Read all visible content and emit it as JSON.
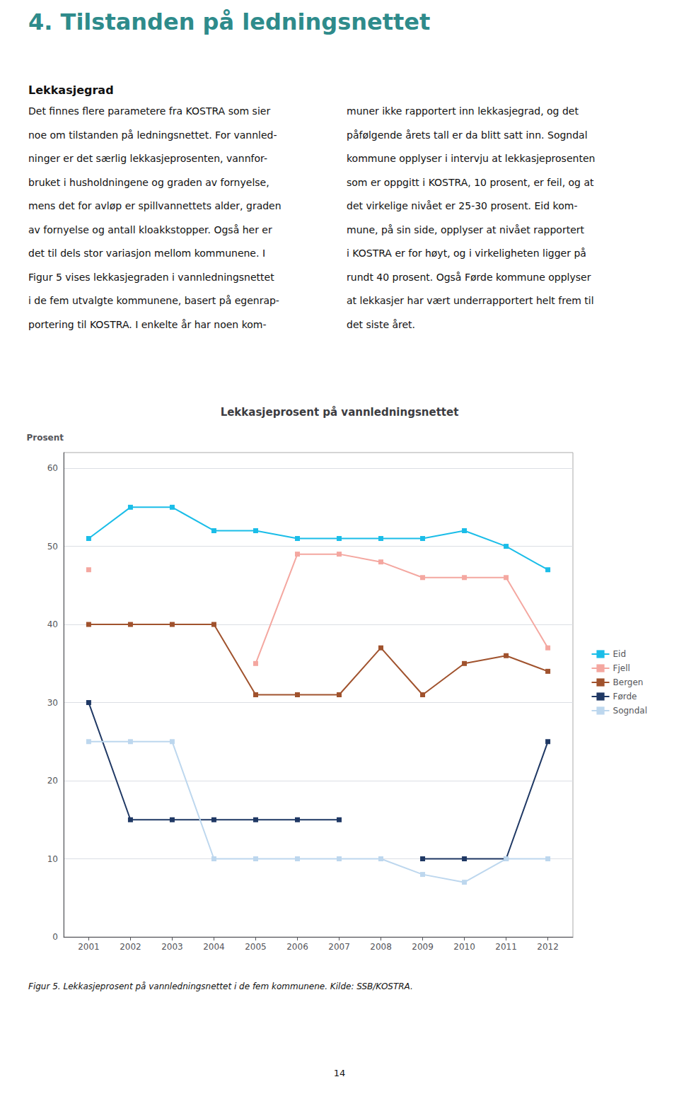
{
  "heading": "4. Tilstanden på ledningsnettet",
  "heading_color": "#2E8B8B",
  "subheading": "Lekkasjegrad",
  "body_left_lines": [
    "Det finnes flere parametere fra KOSTRA som sier",
    "noe om tilstanden på ledningsnettet. For vannled-",
    "ninger er det særlig lekkasjeprosenten, vannfor-",
    "bruket i husholdningene og graden av fornyelse,",
    "mens det for avløp er spillvannettets alder, graden",
    "av fornyelse og antall kloakkstopper. Også her er",
    "det til dels stor variasjon mellom kommunene. I",
    "Figur 5 vises lekkasjegraden i vannledningsnettet",
    "i de fem utvalgte kommunene, basert på egenrap-",
    "portering til KOSTRA. I enkelte år har noen kom-"
  ],
  "body_right_lines": [
    "muner ikke rapportert inn lekkasjegrad, og det",
    "påfølgende årets tall er da blitt satt inn. Sogndal",
    "kommune opplyser i intervju at lekkasjeprosenten",
    "som er oppgitt i KOSTRA, 10 prosent, er feil, og at",
    "det virkelige nivået er 25-30 prosent. Eid kom-",
    "mune, på sin side, opplyser at nivået rapportert",
    "i KOSTRA er for høyt, og i virkeligheten ligger på",
    "rundt 40 prosent. Også Førde kommune opplyser",
    "at lekkasjer har vært underrapportert helt frem til",
    "det siste året."
  ],
  "caption": "Figur 5. Lekkasjeprosent på vannledningsnettet i de fem kommunene. Kilde: SSB/KOSTRA.",
  "page_number": "14",
  "chart_data": {
    "type": "line",
    "title": "Lekkasjeprosent på vannledningsnettet",
    "ylabel": "Prosent",
    "x": [
      2001,
      2002,
      2003,
      2004,
      2005,
      2006,
      2007,
      2008,
      2009,
      2010,
      2011,
      2012
    ],
    "series": [
      {
        "name": "Eid",
        "color": "#1ABDE8",
        "marker": "square",
        "values": [
          51,
          55,
          55,
          52,
          52,
          51,
          51,
          51,
          51,
          52,
          50,
          47
        ]
      },
      {
        "name": "Fjell",
        "color": "#F4A7A0",
        "marker": "square",
        "values": [
          47,
          null,
          null,
          null,
          35,
          49,
          49,
          48,
          46,
          46,
          46,
          37
        ]
      },
      {
        "name": "Bergen",
        "color": "#A0522D",
        "marker": "square",
        "values": [
          40,
          40,
          40,
          40,
          31,
          31,
          31,
          37,
          31,
          35,
          36,
          34
        ]
      },
      {
        "name": "Førde",
        "color": "#1F3864",
        "marker": "square",
        "values": [
          30,
          15,
          15,
          15,
          15,
          15,
          15,
          null,
          10,
          10,
          10,
          25
        ]
      },
      {
        "name": "Sogndal",
        "color": "#BDD7EE",
        "marker": "square",
        "values": [
          25,
          25,
          25,
          10,
          10,
          10,
          10,
          10,
          8,
          7,
          10,
          10
        ]
      }
    ],
    "xlim": [
      2000.4,
      2012.6
    ],
    "xticks": [
      2001,
      2002,
      2003,
      2004,
      2005,
      2006,
      2007,
      2008,
      2009,
      2010,
      2011,
      2012
    ],
    "ylim": [
      0,
      62
    ],
    "yticks": [
      0,
      10,
      20,
      30,
      40,
      50,
      60
    ],
    "grid": true,
    "legend": "right"
  }
}
